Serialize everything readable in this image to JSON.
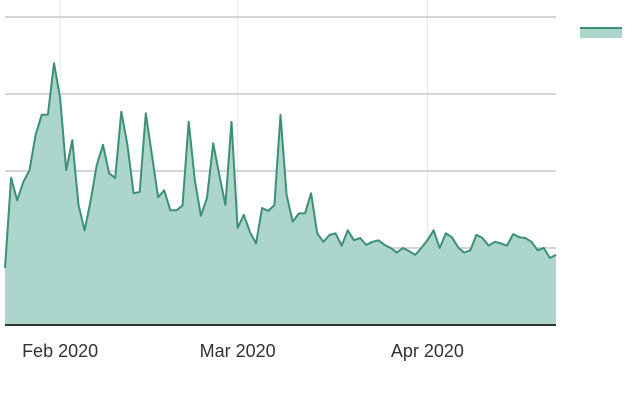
{
  "chart_data": {
    "type": "area",
    "categories": [
      null,
      null,
      null,
      null,
      null,
      null,
      null,
      null,
      null,
      "Feb 2020",
      null,
      null,
      null,
      null,
      null,
      null,
      null,
      null,
      null,
      null,
      null,
      null,
      null,
      null,
      null,
      null,
      null,
      null,
      null,
      null,
      null,
      null,
      null,
      null,
      null,
      null,
      null,
      null,
      "Mar 2020",
      null,
      null,
      null,
      null,
      null,
      null,
      null,
      null,
      null,
      null,
      null,
      null,
      null,
      null,
      null,
      null,
      null,
      null,
      null,
      null,
      null,
      null,
      null,
      null,
      null,
      null,
      null,
      null,
      null,
      null,
      "Apr 2020",
      null,
      null,
      null,
      null,
      null,
      null,
      null,
      null,
      null,
      null,
      null,
      null,
      null,
      null,
      null,
      null,
      null,
      null,
      null,
      null,
      null
    ],
    "series": [
      {
        "color": "#3d8f78",
        "fill": "#acd5cc",
        "values": [
          0.74,
          1.91,
          1.62,
          1.86,
          2.01,
          2.47,
          2.73,
          2.73,
          3.4,
          2.95,
          2.01,
          2.4,
          1.56,
          1.23,
          1.62,
          2.08,
          2.34,
          1.97,
          1.91,
          2.77,
          2.34,
          1.71,
          1.73,
          2.75,
          2.21,
          1.66,
          1.75,
          1.49,
          1.49,
          1.55,
          2.64,
          1.88,
          1.42,
          1.65,
          2.36,
          1.95,
          1.56,
          2.64,
          1.26,
          1.43,
          1.21,
          1.06,
          1.52,
          1.48,
          1.56,
          2.73,
          1.69,
          1.34,
          1.45,
          1.45,
          1.71,
          1.19,
          1.08,
          1.17,
          1.19,
          1.03,
          1.23,
          1.1,
          1.13,
          1.04,
          1.08,
          1.1,
          1.04,
          1.0,
          0.94,
          1.0,
          0.96,
          0.91,
          1.0,
          1.1,
          1.23,
          1.0,
          1.19,
          1.14,
          1.01,
          0.94,
          0.97,
          1.17,
          1.13,
          1.03,
          1.08,
          1.06,
          1.03,
          1.18,
          1.14,
          1.13,
          1.08,
          0.97,
          1.0,
          0.87,
          0.91
        ]
      }
    ],
    "ylim": [
      0,
      4
    ],
    "ygrid": [
      1,
      2,
      3,
      4
    ]
  }
}
